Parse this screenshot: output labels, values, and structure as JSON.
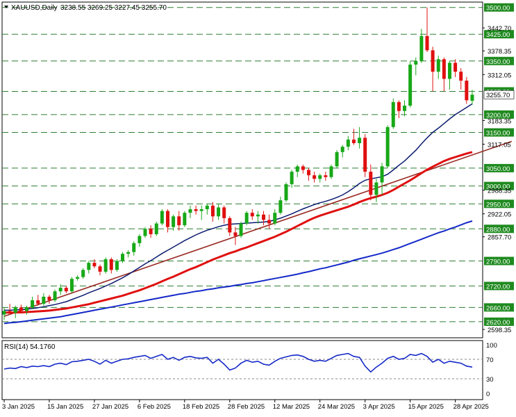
{
  "header": {
    "symbol": "XAUUSD,Daily",
    "ohlc": "3238.55 3269.25 3227.45 3255.70"
  },
  "rsi_header": "RSI(14) 54.1760",
  "colors": {
    "bull": "#17a817",
    "bear": "#e01010",
    "ma_fast": "#0a1a6e",
    "ma_mid": "#e01010",
    "ma_slow": "#1428c8",
    "trend": "#9a2b24",
    "rsi": "#1428c8",
    "level_line": "#2e7d32",
    "label_bg": "#1f8a1f"
  },
  "chart_data": {
    "type": "candlestick",
    "price_axis": {
      "range": [
        2575,
        3515
      ],
      "ticks": [
        "3442.70",
        "3378.35",
        "3312.05",
        "3183.35",
        "3117.05",
        "2988.35",
        "2922.05",
        "2857.70",
        "2598.35"
      ]
    },
    "levels": [
      "3500.00",
      "3425.00",
      "3350.00",
      "3265.00",
      "3200.00",
      "3150.00",
      "3050.00",
      "3000.00",
      "2950.00",
      "2880.00",
      "2790.00",
      "2720.00",
      "2660.00",
      "2620.00"
    ],
    "current_price": "3255.70",
    "x_labels": [
      "3 Jan 2025",
      "15 Jan 2025",
      "27 Jan 2025",
      "6 Feb 2025",
      "18 Feb 2025",
      "28 Feb 2025",
      "12 Mar 2025",
      "24 Mar 2025",
      "3 Apr 2025",
      "15 Apr 2025",
      "28 Apr 2025"
    ],
    "x_label_index": [
      0,
      8,
      16,
      24,
      32,
      40,
      48,
      56,
      64,
      72,
      80
    ],
    "candles": [
      [
        2640,
        2660,
        2625,
        2650
      ],
      [
        2650,
        2670,
        2640,
        2645
      ],
      [
        2645,
        2665,
        2630,
        2660
      ],
      [
        2660,
        2668,
        2645,
        2650
      ],
      [
        2650,
        2665,
        2640,
        2660
      ],
      [
        2660,
        2690,
        2655,
        2680
      ],
      [
        2680,
        2695,
        2665,
        2670
      ],
      [
        2670,
        2700,
        2665,
        2690
      ],
      [
        2690,
        2695,
        2670,
        2680
      ],
      [
        2680,
        2710,
        2675,
        2705
      ],
      [
        2705,
        2725,
        2695,
        2715
      ],
      [
        2715,
        2720,
        2700,
        2705
      ],
      [
        2705,
        2745,
        2700,
        2740
      ],
      [
        2740,
        2750,
        2735,
        2745
      ],
      [
        2745,
        2770,
        2740,
        2765
      ],
      [
        2765,
        2790,
        2755,
        2785
      ],
      [
        2785,
        2795,
        2770,
        2775
      ],
      [
        2775,
        2780,
        2750,
        2760
      ],
      [
        2760,
        2800,
        2755,
        2795
      ],
      [
        2795,
        2800,
        2755,
        2765
      ],
      [
        2765,
        2795,
        2760,
        2790
      ],
      [
        2790,
        2815,
        2785,
        2810
      ],
      [
        2810,
        2820,
        2800,
        2815
      ],
      [
        2815,
        2845,
        2805,
        2840
      ],
      [
        2840,
        2865,
        2830,
        2860
      ],
      [
        2860,
        2885,
        2855,
        2880
      ],
      [
        2880,
        2890,
        2855,
        2865
      ],
      [
        2865,
        2900,
        2860,
        2895
      ],
      [
        2895,
        2935,
        2890,
        2930
      ],
      [
        2930,
        2935,
        2870,
        2885
      ],
      [
        2885,
        2920,
        2875,
        2915
      ],
      [
        2915,
        2930,
        2875,
        2890
      ],
      [
        2890,
        2930,
        2885,
        2925
      ],
      [
        2925,
        2945,
        2910,
        2935
      ],
      [
        2935,
        2945,
        2920,
        2930
      ],
      [
        2930,
        2945,
        2905,
        2935
      ],
      [
        2935,
        2950,
        2920,
        2945
      ],
      [
        2945,
        2955,
        2900,
        2915
      ],
      [
        2915,
        2950,
        2905,
        2940
      ],
      [
        2940,
        2945,
        2895,
        2910
      ],
      [
        2910,
        2915,
        2860,
        2870
      ],
      [
        2870,
        2885,
        2835,
        2860
      ],
      [
        2860,
        2900,
        2855,
        2895
      ],
      [
        2895,
        2930,
        2890,
        2925
      ],
      [
        2925,
        2935,
        2905,
        2915
      ],
      [
        2915,
        2930,
        2895,
        2920
      ],
      [
        2920,
        2930,
        2890,
        2905
      ],
      [
        2905,
        2920,
        2880,
        2895
      ],
      [
        2895,
        2935,
        2890,
        2925
      ],
      [
        2925,
        2970,
        2920,
        2960
      ],
      [
        2960,
        3010,
        2955,
        3005
      ],
      [
        3005,
        3045,
        2995,
        3040
      ],
      [
        3040,
        3060,
        3025,
        3055
      ],
      [
        3055,
        3060,
        3035,
        3045
      ],
      [
        3045,
        3050,
        3015,
        3030
      ],
      [
        3030,
        3040,
        3010,
        3020
      ],
      [
        3020,
        3035,
        3010,
        3030
      ],
      [
        3030,
        3040,
        3015,
        3025
      ],
      [
        3025,
        3060,
        3020,
        3055
      ],
      [
        3055,
        3100,
        3050,
        3095
      ],
      [
        3095,
        3115,
        3080,
        3110
      ],
      [
        3110,
        3140,
        3100,
        3130
      ],
      [
        3130,
        3160,
        3115,
        3120
      ],
      [
        3120,
        3165,
        3105,
        3135
      ],
      [
        3135,
        3145,
        3025,
        3040
      ],
      [
        3040,
        3060,
        2960,
        2975
      ],
      [
        2975,
        3020,
        2955,
        3010
      ],
      [
        3010,
        3065,
        2975,
        3055
      ],
      [
        3055,
        3170,
        3050,
        3165
      ],
      [
        3165,
        3245,
        3160,
        3235
      ],
      [
        3235,
        3240,
        3190,
        3210
      ],
      [
        3210,
        3240,
        3195,
        3225
      ],
      [
        3225,
        3350,
        3220,
        3340
      ],
      [
        3340,
        3360,
        3310,
        3350
      ],
      [
        3350,
        3440,
        3345,
        3420
      ],
      [
        3420,
        3500,
        3375,
        3380
      ],
      [
        3380,
        3390,
        3265,
        3320
      ],
      [
        3320,
        3365,
        3300,
        3355
      ],
      [
        3355,
        3360,
        3265,
        3300
      ],
      [
        3300,
        3350,
        3270,
        3345
      ],
      [
        3345,
        3355,
        3305,
        3320
      ],
      [
        3320,
        3330,
        3270,
        3295
      ],
      [
        3295,
        3305,
        3230,
        3240
      ],
      [
        3238.55,
        3269.25,
        3227.45,
        3255.7
      ]
    ],
    "rsi": {
      "name": "RSI(14)",
      "value": "54.1760",
      "range": [
        0,
        100
      ],
      "ticks": [
        "100",
        "70",
        "30",
        "0"
      ],
      "levels": [
        70,
        30
      ],
      "values": [
        50,
        52,
        51,
        55,
        53,
        56,
        55,
        57,
        55,
        60,
        62,
        59,
        65,
        66,
        68,
        70,
        66,
        60,
        68,
        62,
        66,
        70,
        71,
        74,
        76,
        78,
        72,
        76,
        80,
        70,
        74,
        68,
        74,
        76,
        73,
        72,
        74,
        62,
        70,
        60,
        48,
        52,
        62,
        68,
        64,
        66,
        60,
        58,
        66,
        72,
        75,
        78,
        79,
        76,
        70,
        66,
        68,
        66,
        72,
        78,
        80,
        82,
        76,
        74,
        56,
        44,
        54,
        62,
        72,
        76,
        70,
        72,
        80,
        78,
        82,
        76,
        64,
        70,
        62,
        66,
        64,
        62,
        56,
        54
      ]
    },
    "overlays": {
      "ma_fast": {
        "values": [
          2652,
          2652,
          2653,
          2654,
          2655,
          2657,
          2659,
          2662,
          2665,
          2668,
          2672,
          2676,
          2682,
          2688,
          2694,
          2701,
          2707,
          2713,
          2720,
          2727,
          2735,
          2743,
          2752,
          2762,
          2772,
          2782,
          2791,
          2801,
          2811,
          2820,
          2829,
          2838,
          2847,
          2855,
          2863,
          2870,
          2876,
          2881,
          2886,
          2890,
          2893,
          2894,
          2895,
          2896,
          2897,
          2898,
          2899,
          2901,
          2905,
          2910,
          2916,
          2922,
          2929,
          2936,
          2942,
          2948,
          2953,
          2957,
          2962,
          2968,
          2975,
          2984,
          2995,
          3007,
          3016,
          3020,
          3023,
          3026,
          3033,
          3045,
          3058,
          3070,
          3085,
          3100,
          3118,
          3135,
          3150,
          3162,
          3175,
          3188,
          3200,
          3210,
          3220,
          3230
        ]
      },
      "ma_mid": {
        "values": [
          2646,
          2645,
          2646,
          2646,
          2647,
          2648,
          2649,
          2650,
          2651,
          2653,
          2655,
          2657,
          2660,
          2663,
          2666,
          2669,
          2673,
          2677,
          2681,
          2685,
          2689,
          2693,
          2698,
          2703,
          2708,
          2714,
          2720,
          2726,
          2733,
          2740,
          2746,
          2753,
          2760,
          2767,
          2773,
          2780,
          2787,
          2794,
          2800,
          2806,
          2812,
          2817,
          2823,
          2828,
          2834,
          2840,
          2846,
          2852,
          2858,
          2865,
          2872,
          2880,
          2888,
          2896,
          2904,
          2911,
          2917,
          2922,
          2927,
          2932,
          2937,
          2942,
          2948,
          2955,
          2961,
          2966,
          2970,
          2975,
          2981,
          2989,
          2998,
          3007,
          3016,
          3026,
          3036,
          3046,
          3054,
          3062,
          3070,
          3076,
          3081,
          3086,
          3091,
          3095
        ]
      },
      "ma_slow": {
        "values": [
          2615,
          2617,
          2618,
          2620,
          2622,
          2624,
          2626,
          2628,
          2630,
          2632,
          2634,
          2637,
          2640,
          2643,
          2646,
          2649,
          2652,
          2655,
          2658,
          2661,
          2664,
          2667,
          2670,
          2673,
          2676,
          2679,
          2682,
          2685,
          2688,
          2691,
          2694,
          2697,
          2699,
          2702,
          2705,
          2707,
          2710,
          2712,
          2715,
          2717,
          2719,
          2722,
          2724,
          2727,
          2729,
          2732,
          2735,
          2738,
          2741,
          2744,
          2747,
          2750,
          2753,
          2757,
          2760,
          2764,
          2768,
          2771,
          2775,
          2779,
          2783,
          2787,
          2792,
          2796,
          2800,
          2804,
          2808,
          2812,
          2817,
          2822,
          2827,
          2833,
          2839,
          2845,
          2851,
          2857,
          2863,
          2869,
          2874,
          2880,
          2885,
          2891,
          2897,
          2902
        ]
      },
      "trend_line": {
        "from": [
          0,
          2635
        ],
        "to": [
          90,
          3125
        ]
      }
    }
  }
}
